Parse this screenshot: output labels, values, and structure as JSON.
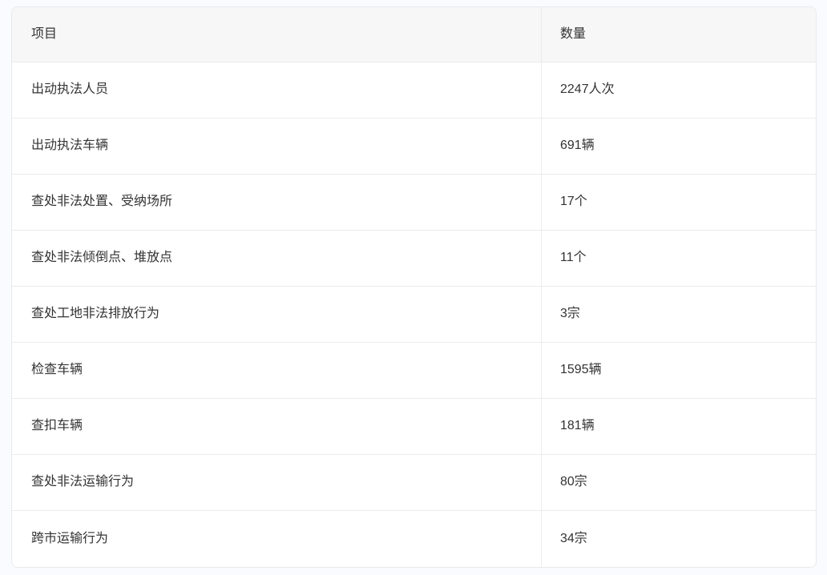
{
  "table": {
    "columns": [
      {
        "key": "item",
        "label": "项目"
      },
      {
        "key": "count",
        "label": "数量"
      }
    ],
    "rows": [
      {
        "item": "出动执法人员",
        "count": "2247人次"
      },
      {
        "item": "出动执法车辆",
        "count": "691辆"
      },
      {
        "item": "查处非法处置、受纳场所",
        "count": "17个"
      },
      {
        "item": "查处非法倾倒点、堆放点",
        "count": "11个"
      },
      {
        "item": "查处工地非法排放行为",
        "count": "3宗"
      },
      {
        "item": "检查车辆",
        "count": "1595辆"
      },
      {
        "item": "查扣车辆",
        "count": "181辆"
      },
      {
        "item": "查处非法运输行为",
        "count": "80宗"
      },
      {
        "item": "跨市运输行为",
        "count": "34宗"
      }
    ],
    "colors": {
      "page_bg": "#fafbfe",
      "table_bg": "#ffffff",
      "header_bg": "#f7f7f8",
      "border": "#ebebeb",
      "text": "#333333"
    }
  }
}
